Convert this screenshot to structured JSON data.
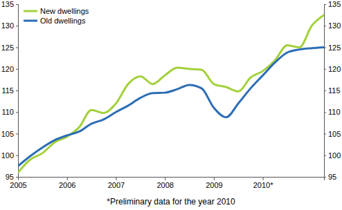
{
  "chart_data": {
    "type": "line",
    "footnote": "*Preliminary data for the year 2010",
    "x": [
      2005.0,
      2005.25,
      2005.5,
      2005.75,
      2006.0,
      2006.25,
      2006.5,
      2006.75,
      2007.0,
      2007.25,
      2007.5,
      2007.75,
      2008.0,
      2008.25,
      2008.5,
      2008.75,
      2009.0,
      2009.25,
      2009.5,
      2009.75,
      2010.0,
      2010.25,
      2010.5,
      2010.75,
      2011.0,
      2011.25
    ],
    "series": [
      {
        "name": "New dwellings",
        "color": "#a3d13b",
        "values": [
          96,
          99,
          100.5,
          103,
          104.3,
          106.5,
          110.5,
          109.8,
          112,
          116.5,
          118.3,
          116.5,
          118.5,
          120.3,
          120,
          119.8,
          116.5,
          115.8,
          114.8,
          118,
          119.5,
          122,
          125.5,
          125,
          130,
          132.5
        ]
      },
      {
        "name": "Old dwellings",
        "color": "#2b6db5",
        "values": [
          97.5,
          99.8,
          101.8,
          103.5,
          104.6,
          105.5,
          107.3,
          108.3,
          110,
          111.5,
          113.3,
          114.4,
          114.5,
          115.3,
          116.3,
          115.5,
          111,
          108.8,
          112,
          115.5,
          118.5,
          121.5,
          123.8,
          124.5,
          124.8,
          125
        ]
      }
    ],
    "xlim": [
      2005,
      2011.25
    ],
    "xticks": [
      2005,
      2006,
      2007,
      2008,
      2009,
      {
        "value": 2010,
        "label": "2010*"
      }
    ],
    "ylim": [
      95,
      135
    ],
    "yticks": [
      95,
      100,
      105,
      110,
      115,
      120,
      125,
      130,
      135
    ],
    "grid": false,
    "legend": "upper left"
  }
}
